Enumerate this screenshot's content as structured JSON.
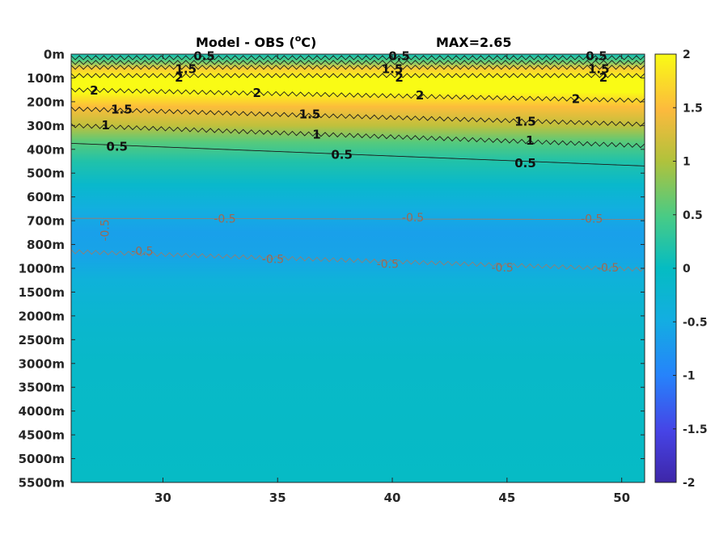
{
  "chart_data": {
    "type": "heatmap",
    "title": "Model - OBS (",
    "title_sup": "o",
    "title_unit": "C)",
    "max_label": "MAX=2.65",
    "x_ticks": [
      30,
      35,
      40,
      45,
      50
    ],
    "x_range": [
      26,
      51
    ],
    "y_ticks": [
      "0m",
      "100m",
      "200m",
      "300m",
      "400m",
      "500m",
      "600m",
      "700m",
      "800m",
      "1000m",
      "1500m",
      "2000m",
      "2500m",
      "3000m",
      "3500m",
      "4000m",
      "4500m",
      "5000m",
      "5500m"
    ],
    "colorbar": {
      "ticks": [
        "2",
        "1.5",
        "1",
        "0.5",
        "0",
        "-0.5",
        "-1",
        "-1.5",
        "-2"
      ],
      "range": [
        -2,
        2
      ],
      "colormap": "parula"
    },
    "profile_by_depth_level": [
      {
        "level": 0,
        "value": 0.1
      },
      {
        "level": 0.25,
        "value": 0.5
      },
      {
        "level": 0.6,
        "value": 1.6
      },
      {
        "level": 1.0,
        "value": 2.1
      },
      {
        "level": 1.6,
        "value": 2.0
      },
      {
        "level": 2.2,
        "value": 1.5
      },
      {
        "level": 3.0,
        "value": 1.1
      },
      {
        "level": 3.7,
        "value": 0.55
      },
      {
        "level": 4.5,
        "value": 0.2
      },
      {
        "level": 5.5,
        "value": -0.15
      },
      {
        "level": 6.5,
        "value": -0.45
      },
      {
        "level": 7.5,
        "value": -0.65
      },
      {
        "level": 8.5,
        "value": -0.6
      },
      {
        "level": 9.5,
        "value": -0.35
      },
      {
        "level": 11,
        "value": -0.2
      },
      {
        "level": 13,
        "value": -0.1
      },
      {
        "level": 18,
        "value": -0.05
      }
    ],
    "contour_labels": {
      "positive": [
        {
          "text": "0.5",
          "x": 31.8,
          "level": 0.1
        },
        {
          "text": "1.5",
          "x": 31.0,
          "level": 0.65
        },
        {
          "text": "2",
          "x": 30.7,
          "level": 1.0
        },
        {
          "text": "0.5",
          "x": 40.3,
          "level": 0.1
        },
        {
          "text": "1.5",
          "x": 40.0,
          "level": 0.65
        },
        {
          "text": "2",
          "x": 40.3,
          "level": 1.0
        },
        {
          "text": "0.5",
          "x": 48.9,
          "level": 0.1
        },
        {
          "text": "1.5",
          "x": 49.0,
          "level": 0.65
        },
        {
          "text": "2",
          "x": 49.2,
          "level": 1.0
        },
        {
          "text": "2",
          "x": 27.0,
          "level": 1.55
        },
        {
          "text": "2",
          "x": 34.1,
          "level": 1.65
        },
        {
          "text": "2",
          "x": 41.2,
          "level": 1.75
        },
        {
          "text": "2",
          "x": 48.0,
          "level": 1.9
        },
        {
          "text": "1.5",
          "x": 28.2,
          "level": 2.35
        },
        {
          "text": "1.5",
          "x": 36.4,
          "level": 2.55
        },
        {
          "text": "1.5",
          "x": 45.8,
          "level": 2.85
        },
        {
          "text": "1",
          "x": 27.5,
          "level": 3.0
        },
        {
          "text": "1",
          "x": 36.7,
          "level": 3.4
        },
        {
          "text": "1",
          "x": 46.0,
          "level": 3.65
        },
        {
          "text": "0.5",
          "x": 28.0,
          "level": 3.9
        },
        {
          "text": "0.5",
          "x": 37.8,
          "level": 4.25
        },
        {
          "text": "0.5",
          "x": 45.8,
          "level": 4.6
        }
      ],
      "negative": [
        {
          "text": "-0.5",
          "x": 27.5,
          "level": 7.4,
          "rotate": true
        },
        {
          "text": "-0.5",
          "x": 32.7,
          "level": 6.95
        },
        {
          "text": "-0.5",
          "x": 40.9,
          "level": 6.9
        },
        {
          "text": "-0.5",
          "x": 48.7,
          "level": 6.95
        },
        {
          "text": "-0.5",
          "x": 29.1,
          "level": 8.3
        },
        {
          "text": "-0.5",
          "x": 34.8,
          "level": 8.65
        },
        {
          "text": "-0.5",
          "x": 39.8,
          "level": 8.85
        },
        {
          "text": "-0.5",
          "x": 44.8,
          "level": 9.0
        },
        {
          "text": "-0.5",
          "x": 49.4,
          "level": 9.0
        }
      ]
    },
    "contours": [
      {
        "value": 0.5,
        "sign": "pos",
        "level_start": 0.15,
        "level_end": 0.15,
        "wavy": true
      },
      {
        "value": 1.0,
        "sign": "pos",
        "level_start": 0.35,
        "level_end": 0.35,
        "wavy": true
      },
      {
        "value": 1.5,
        "sign": "pos",
        "level_start": 0.55,
        "level_end": 0.55,
        "wavy": true
      },
      {
        "value": 2.0,
        "sign": "pos",
        "level_start": 0.9,
        "level_end": 0.9,
        "wavy": true
      },
      {
        "value": 2.0,
        "sign": "pos",
        "level_start": 1.5,
        "level_end": 1.95,
        "wavy": true
      },
      {
        "value": 1.5,
        "sign": "pos",
        "level_start": 2.3,
        "level_end": 2.95,
        "wavy": true
      },
      {
        "value": 1.0,
        "sign": "pos",
        "level_start": 3.0,
        "level_end": 3.85,
        "wavy": true
      },
      {
        "value": 0.5,
        "sign": "pos",
        "level_start": 3.75,
        "level_end": 4.7,
        "wavy": false
      },
      {
        "value": -0.5,
        "sign": "neg",
        "level_start": 6.9,
        "level_end": 6.95,
        "wavy": false
      },
      {
        "value": -0.5,
        "sign": "neg",
        "level_start": 8.3,
        "level_end": 9.05,
        "wavy": true
      }
    ]
  }
}
